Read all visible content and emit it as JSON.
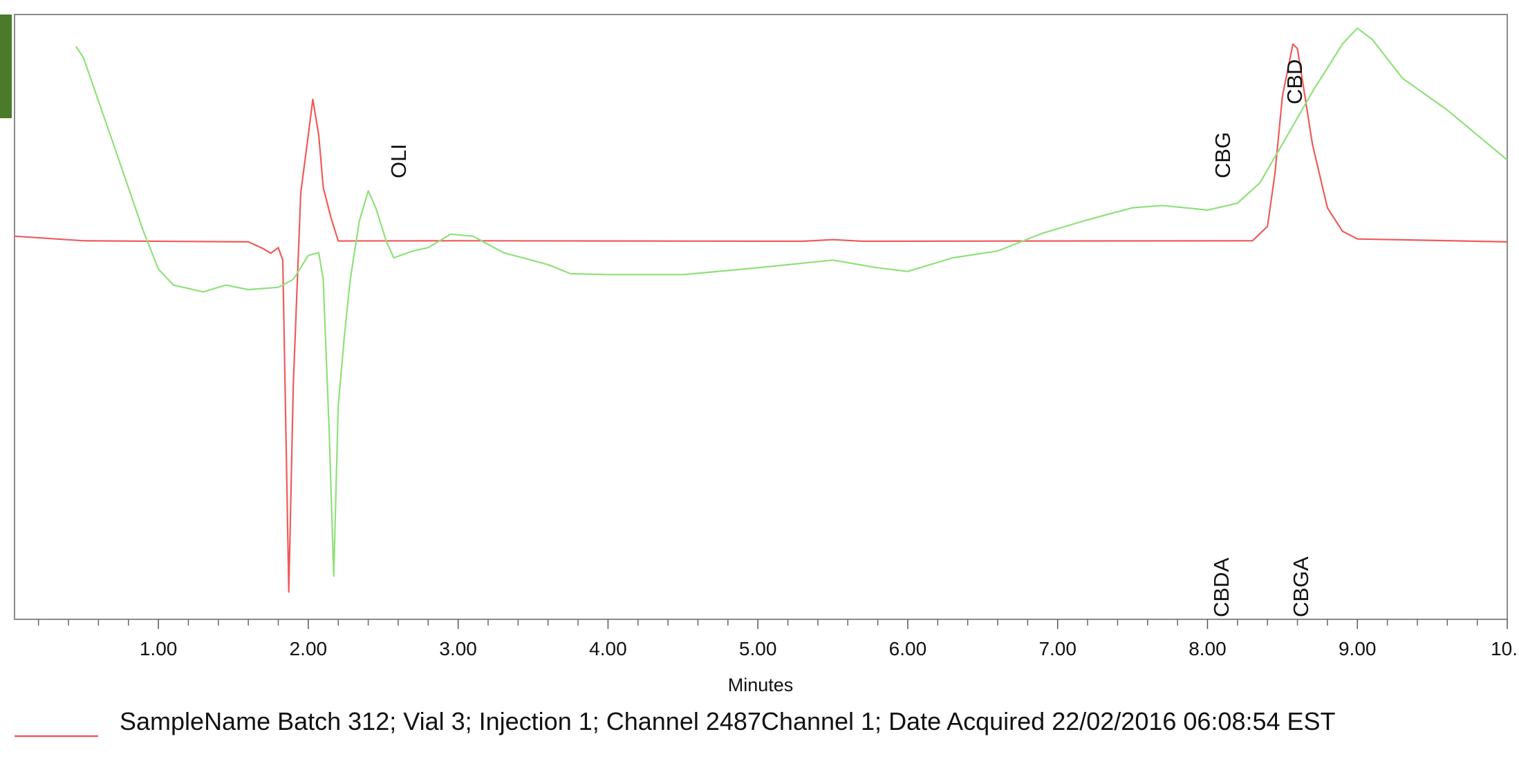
{
  "chart_data": {
    "type": "line",
    "xlabel": "Minutes",
    "xlim": [
      0.04,
      10.0
    ],
    "ylim": [
      -166,
      100
    ],
    "xticks": [
      {
        "value": 1,
        "label": "1.00"
      },
      {
        "value": 2,
        "label": "2.00"
      },
      {
        "value": 3,
        "label": "3.00"
      },
      {
        "value": 4,
        "label": "4.00"
      },
      {
        "value": 5,
        "label": "5.00"
      },
      {
        "value": 6,
        "label": "6.00"
      },
      {
        "value": 7,
        "label": "7.00"
      },
      {
        "value": 8,
        "label": "8.00"
      },
      {
        "value": 9,
        "label": "9.00"
      },
      {
        "value": 10,
        "label": "10."
      }
    ],
    "minor_xticks": [
      0.2,
      0.4,
      0.6,
      0.8,
      1.2,
      1.4,
      1.6,
      1.8,
      2.2,
      2.4,
      2.6,
      2.8,
      3.2,
      3.4,
      3.6,
      3.8,
      4.2,
      4.4,
      4.6,
      4.8,
      5.2,
      5.4,
      5.6,
      5.8,
      6.2,
      6.4,
      6.6,
      6.8,
      7.2,
      7.4,
      7.6,
      7.8,
      8.2,
      8.4,
      8.6,
      8.8,
      9.2,
      9.4,
      9.6,
      9.8
    ],
    "series": [
      {
        "name": "SampleName Batch 312; Vial 3; Injection 1; Channel 2487Channel 1; Date Acquired 22/02/2016 06:08:54 EST",
        "color": "#ef5a5a",
        "x": [
          0.04,
          0.5,
          1.6,
          1.7,
          1.75,
          1.8,
          1.83,
          1.87,
          1.9,
          1.95,
          2.0,
          2.03,
          2.07,
          2.1,
          2.15,
          2.2,
          3.0,
          5.3,
          5.5,
          5.7,
          8.3,
          8.4,
          8.45,
          8.5,
          8.57,
          8.6,
          8.65,
          8.7,
          8.8,
          8.9,
          9.0,
          10.0
        ],
        "values": [
          2.5,
          0.5,
          0,
          -3,
          -5,
          -2.5,
          -8,
          -154,
          -63,
          21.6,
          47,
          62.7,
          47,
          24,
          11,
          0.4,
          0.5,
          0.3,
          1,
          0.3,
          0.5,
          6.8,
          30,
          64,
          87,
          85,
          64,
          43,
          15,
          4.7,
          1.3,
          0
        ]
      },
      {
        "color": "#8fe07a",
        "x": [
          0.45,
          0.5,
          0.7,
          0.9,
          1.0,
          1.1,
          1.3,
          1.45,
          1.6,
          1.8,
          1.9,
          2.0,
          2.07,
          2.1,
          2.14,
          2.17,
          2.2,
          2.24,
          2.28,
          2.34,
          2.4,
          2.45,
          2.52,
          2.57,
          2.7,
          2.8,
          2.95,
          3.1,
          3.3,
          3.6,
          3.75,
          4.0,
          4.5,
          5.0,
          5.5,
          5.8,
          6.0,
          6.3,
          6.6,
          6.9,
          7.2,
          7.5,
          7.7,
          8.0,
          8.2,
          8.35,
          8.5,
          8.7,
          8.9,
          9.0,
          9.1,
          9.3,
          9.6,
          9.8,
          10.0
        ],
        "values": [
          86,
          81,
          43,
          4.7,
          -12,
          -19,
          -22,
          -19,
          -21,
          -20,
          -16.5,
          -6,
          -4.7,
          -16.5,
          -84,
          -147,
          -72,
          -42,
          -16.5,
          9,
          22.5,
          15,
          0.4,
          -7,
          -4,
          -2.5,
          3.4,
          2.5,
          -4.7,
          -10,
          -14,
          -14.4,
          -14.4,
          -11.4,
          -8,
          -11.4,
          -13,
          -7,
          -4,
          3.8,
          9.7,
          15,
          16,
          14,
          17,
          26,
          43,
          66,
          87,
          94,
          89,
          72,
          58,
          47,
          36
        ]
      }
    ],
    "annotations": [
      {
        "text": "OLI",
        "x": 2.6
      },
      {
        "text": "CBG",
        "x": 8.1
      },
      {
        "text": "CBD",
        "x": 8.58
      },
      {
        "text": "CBDA",
        "x": 8.09
      },
      {
        "text": "CBGA",
        "x": 8.62
      }
    ]
  }
}
